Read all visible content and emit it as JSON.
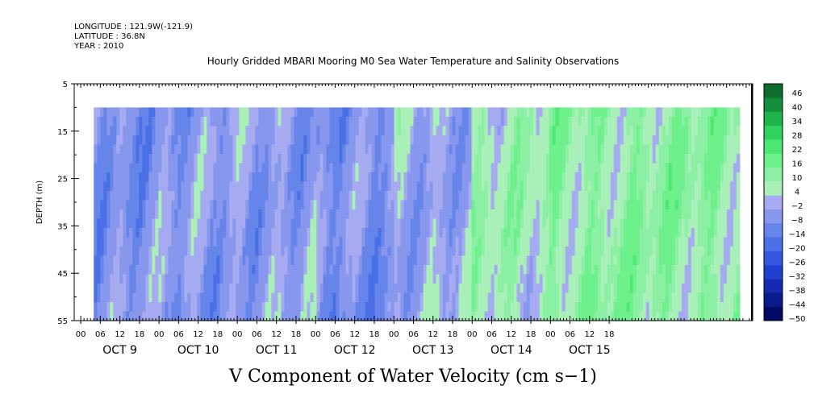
{
  "header": {
    "longitude": "LONGITUDE : 121.9W(-121.9)",
    "latitude": "LATITUDE : 36.8N",
    "year": "YEAR : 2010"
  },
  "chart_data": {
    "type": "heatmap",
    "title": "Hourly Gridded MBARI Mooring M0 Sea Water Temperature and Salinity Observations",
    "xlabel": "",
    "ylabel": "DEPTH (m)",
    "bottom_title": "V Component of Water Velocity (cm s−1)",
    "x_hour_ticks": [
      "00",
      "06",
      "12",
      "18",
      "00",
      "06",
      "12",
      "18",
      "00",
      "06",
      "12",
      "18",
      "00",
      "06",
      "12",
      "18",
      "00",
      "06",
      "12",
      "18",
      "00",
      "06",
      "12",
      "18",
      "00",
      "06",
      "12",
      "18"
    ],
    "x_day_labels": [
      "OCT  9",
      "OCT 10",
      "OCT 11",
      "OCT 12",
      "OCT 13",
      "OCT 14",
      "OCT 15"
    ],
    "y_ticks": [
      "5",
      "15",
      "25",
      "35",
      "45",
      "55"
    ],
    "ylim": [
      55,
      5
    ],
    "data_depth_range": [
      10,
      55
    ],
    "data_hours": [
      4,
      202
    ],
    "x_range_hours": [
      -2,
      206
    ],
    "colorbar": {
      "levels": [
        -50,
        -44,
        -38,
        -32,
        -26,
        -20,
        -14,
        -8,
        -2,
        4,
        10,
        16,
        22,
        28,
        34,
        40,
        46
      ],
      "labels": [
        "46",
        "40",
        "34",
        "28",
        "22",
        "16",
        "10",
        "4",
        "−2",
        "−8",
        "−14",
        "−20",
        "−26",
        "−32",
        "−38",
        "−44",
        "−50"
      ],
      "min": -50,
      "max": 52
    },
    "regions": [
      {
        "day": "OCT  9",
        "v_approx": -6
      },
      {
        "day": "OCT 10",
        "v_approx": -4
      },
      {
        "day": "OCT 11",
        "v_approx": -3
      },
      {
        "day": "OCT 12",
        "v_approx": -7
      },
      {
        "day": "OCT 13",
        "v_approx": -1
      },
      {
        "day": "OCT 14",
        "v_approx": 8
      },
      {
        "day": "OCT 15",
        "v_approx": 12
      }
    ]
  }
}
